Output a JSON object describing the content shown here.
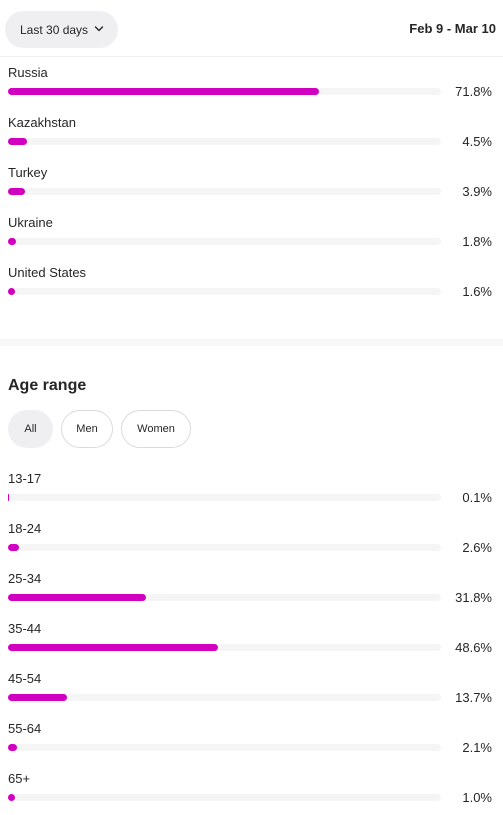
{
  "header": {
    "range_label": "Last 30 days",
    "range_icon": "chevron-down-icon",
    "date_range": "Feb 9 - Mar 10"
  },
  "colors": {
    "bar_fill": "#d100c1",
    "bar_track": "#f5f5f5",
    "chip_active": "#efeff2"
  },
  "countries": [
    {
      "label": "Russia",
      "value": "71.8%",
      "pct": 71.8
    },
    {
      "label": "Kazakhstan",
      "value": "4.5%",
      "pct": 4.5
    },
    {
      "label": "Turkey",
      "value": "3.9%",
      "pct": 3.9
    },
    {
      "label": "Ukraine",
      "value": "1.8%",
      "pct": 1.8
    },
    {
      "label": "United States",
      "value": "1.6%",
      "pct": 1.6
    }
  ],
  "age_section": {
    "title": "Age range",
    "filters": [
      {
        "label": "All",
        "active": true
      },
      {
        "label": "Men",
        "active": false
      },
      {
        "label": "Women",
        "active": false
      }
    ],
    "ranges": [
      {
        "label": "13-17",
        "value": "0.1%",
        "pct": 0.1
      },
      {
        "label": "18-24",
        "value": "2.6%",
        "pct": 2.6
      },
      {
        "label": "25-34",
        "value": "31.8%",
        "pct": 31.8
      },
      {
        "label": "35-44",
        "value": "48.6%",
        "pct": 48.6
      },
      {
        "label": "45-54",
        "value": "13.7%",
        "pct": 13.7
      },
      {
        "label": "55-64",
        "value": "2.1%",
        "pct": 2.1
      },
      {
        "label": "65+",
        "value": "1.0%",
        "pct": 1.0
      }
    ]
  }
}
